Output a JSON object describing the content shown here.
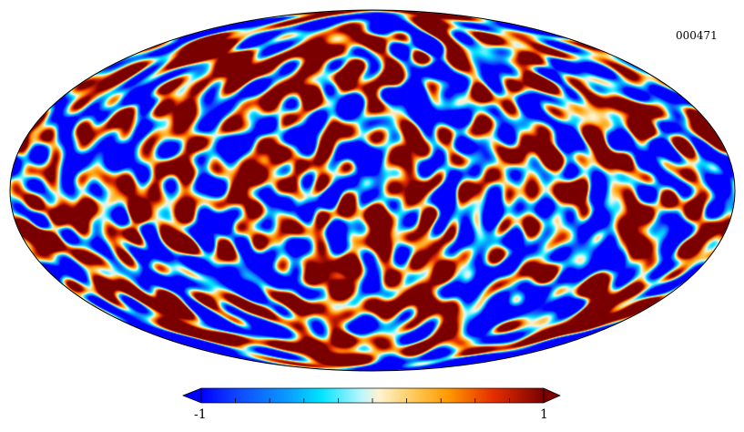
{
  "map": {
    "id": "000471",
    "projection": "mollweide",
    "seed": 471
  },
  "colorbar": {
    "min_label": "-1",
    "max_label": "1",
    "min": -1,
    "max": 1,
    "extend": "both",
    "ticks": [
      -1,
      -0.8,
      -0.6,
      -0.4,
      -0.2,
      0,
      0.2,
      0.4,
      0.6,
      0.8,
      1
    ],
    "stops": [
      {
        "pos": 0.0,
        "color": "#0000ff"
      },
      {
        "pos": 0.1,
        "color": "#0f43ff"
      },
      {
        "pos": 0.25,
        "color": "#0a9aff"
      },
      {
        "pos": 0.35,
        "color": "#00e4ff"
      },
      {
        "pos": 0.47,
        "color": "#bff6ff"
      },
      {
        "pos": 0.52,
        "color": "#fff3d0"
      },
      {
        "pos": 0.62,
        "color": "#ffc95a"
      },
      {
        "pos": 0.72,
        "color": "#ff9a00"
      },
      {
        "pos": 0.85,
        "color": "#e62f00"
      },
      {
        "pos": 1.0,
        "color": "#7a0000"
      }
    ]
  }
}
